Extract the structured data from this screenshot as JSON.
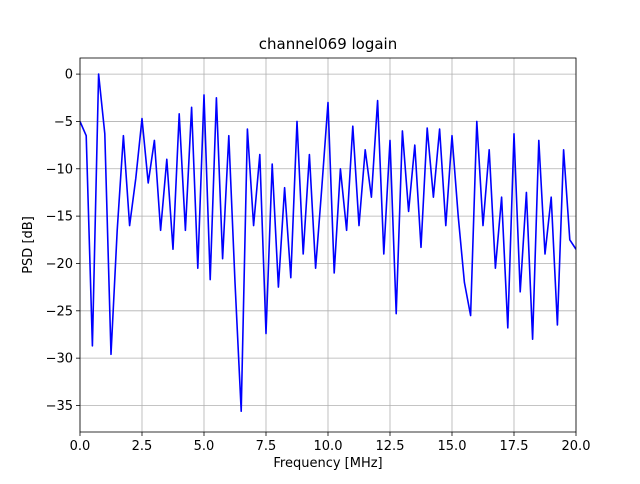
{
  "chart_data": {
    "type": "line",
    "title": "channel069 logain",
    "xlabel": "Frequency [MHz]",
    "ylabel": "PSD [dB]",
    "x": [
      0,
      0.25,
      0.5,
      0.75,
      1,
      1.25,
      1.5,
      1.75,
      2,
      2.25,
      2.5,
      2.75,
      3,
      3.25,
      3.5,
      3.75,
      4,
      4.25,
      4.5,
      4.75,
      5,
      5.25,
      5.5,
      5.75,
      6,
      6.25,
      6.5,
      6.75,
      7,
      7.25,
      7.5,
      7.75,
      8,
      8.25,
      8.5,
      8.75,
      9,
      9.25,
      9.5,
      9.75,
      10,
      10.25,
      10.5,
      10.75,
      11,
      11.25,
      11.5,
      11.75,
      12,
      12.25,
      12.5,
      12.75,
      13,
      13.25,
      13.5,
      13.75,
      14,
      14.25,
      14.5,
      14.75,
      15,
      15.25,
      15.5,
      15.75,
      16,
      16.25,
      16.5,
      16.75,
      17,
      17.25,
      17.5,
      17.75,
      18,
      18.25,
      18.5,
      18.75,
      19,
      19.25,
      19.5,
      19.75,
      20
    ],
    "series": [
      {
        "color": "#0000ff",
        "values": [
          -5,
          -6.5,
          -28.7,
          0,
          -6.3,
          -29.6,
          -16.5,
          -6.5,
          -16,
          -11,
          -4.7,
          -11.5,
          -7,
          -16.5,
          -9,
          -18.5,
          -4.2,
          -16.5,
          -3.5,
          -20.5,
          -2.2,
          -21.7,
          -2.5,
          -19.5,
          -6.5,
          -22,
          -35.6,
          -5.8,
          -16,
          -8.5,
          -27.4,
          -9.5,
          -22.5,
          -12,
          -21.5,
          -5,
          -19,
          -8.5,
          -20.5,
          -12,
          -3,
          -21,
          -10,
          -16.5,
          -5.5,
          -16,
          -8,
          -13,
          -2.8,
          -19,
          -7,
          -25.3,
          -6,
          -14.5,
          -7.5,
          -18.3,
          -5.7,
          -13,
          -5.8,
          -16,
          -6.5,
          -15,
          -22,
          -25.5,
          -5,
          -16,
          -8,
          -20.5,
          -13,
          -26.8,
          -6.3,
          -23,
          -12.5,
          -28,
          -7,
          -19,
          -13,
          -26.5,
          -8,
          -17.5,
          -18.5
        ]
      }
    ],
    "xlim": [
      0,
      20
    ],
    "ylim": [
      -37.8,
      1.7
    ],
    "xticks": [
      {
        "value": 0,
        "label": "0.0"
      },
      {
        "value": 2.5,
        "label": "2.5"
      },
      {
        "value": 5,
        "label": "5.0"
      },
      {
        "value": 7.5,
        "label": "7.5"
      },
      {
        "value": 10,
        "label": "10.0"
      },
      {
        "value": 12.5,
        "label": "12.5"
      },
      {
        "value": 15,
        "label": "15.0"
      },
      {
        "value": 17.5,
        "label": "17.5"
      },
      {
        "value": 20,
        "label": "20.0"
      }
    ],
    "yticks": [
      {
        "value": -35,
        "label": "−35"
      },
      {
        "value": -30,
        "label": "−30"
      },
      {
        "value": -25,
        "label": "−25"
      },
      {
        "value": -20,
        "label": "−20"
      },
      {
        "value": -15,
        "label": "−15"
      },
      {
        "value": -10,
        "label": "−10"
      },
      {
        "value": -5,
        "label": "−5"
      },
      0
    ],
    "grid": true
  }
}
